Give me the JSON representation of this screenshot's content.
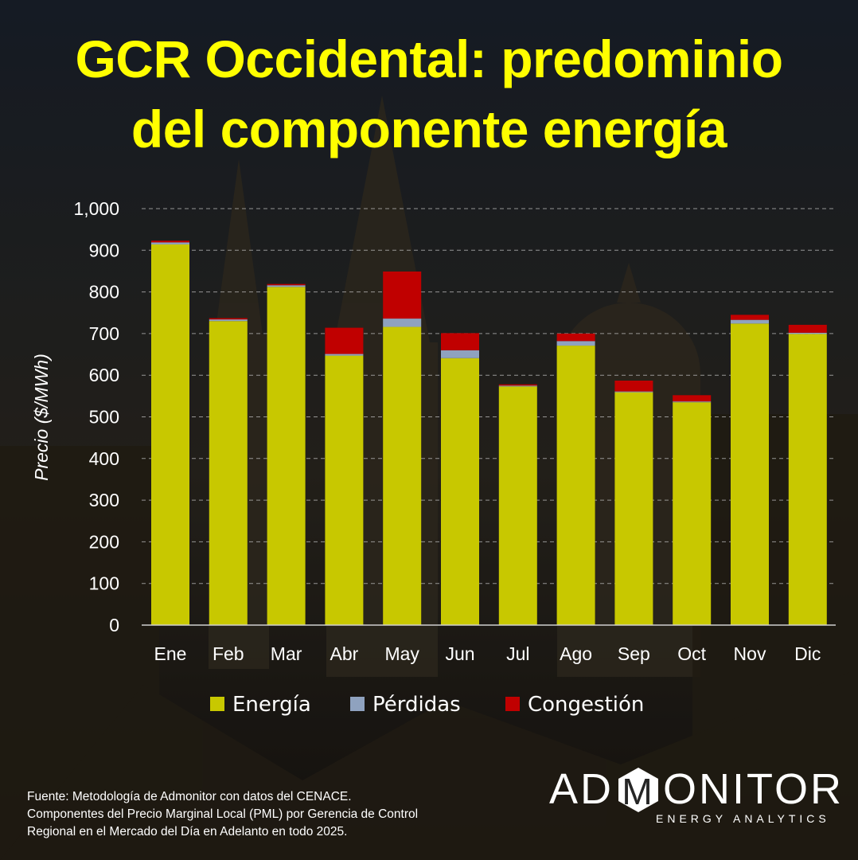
{
  "title": {
    "line1": "GCR Occidental: predominio",
    "line2": "del componente energía"
  },
  "chart_data": {
    "type": "bar",
    "stacked": true,
    "categories": [
      "Ene",
      "Feb",
      "Mar",
      "Abr",
      "May",
      "Jun",
      "Jul",
      "Ago",
      "Sep",
      "Oct",
      "Nov",
      "Dic"
    ],
    "series": [
      {
        "name": "Energía",
        "color": "#c8c800",
        "values": [
          914,
          730,
          812,
          647,
          716,
          641,
          573,
          671,
          559,
          535,
          724,
          699
        ]
      },
      {
        "name": "Pérdidas",
        "color": "#8fa2bf",
        "values": [
          5,
          4,
          4,
          4,
          20,
          19,
          2,
          11,
          2,
          2,
          9,
          3
        ]
      },
      {
        "name": "Congestión",
        "color": "#c00000",
        "values": [
          4,
          3,
          3,
          63,
          113,
          41,
          3,
          18,
          26,
          15,
          12,
          19
        ]
      }
    ],
    "ylabel": "Precio ($/MWh)",
    "ylim": [
      0,
      1000
    ],
    "yticks": [
      "0",
      "100",
      "200",
      "300",
      "400",
      "500",
      "600",
      "700",
      "800",
      "900",
      "1,000"
    ],
    "grid": true,
    "legend_position": "bottom"
  },
  "source": {
    "line1": "Fuente: Metodología de Admonitor con datos del CENACE.",
    "line2": "Componentes del Precio Marginal Local (PML) por Gerencia de Control",
    "line3": "Regional en el Mercado del Día en Adelanto en todo 2025."
  },
  "logo": {
    "word_left": "AD",
    "word_mid": "M",
    "word_right": "ONITOR",
    "subtitle": "ENERGY ANALYTICS"
  }
}
